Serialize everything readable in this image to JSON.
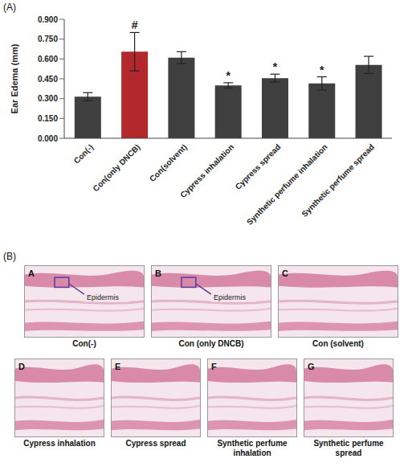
{
  "chart_data": {
    "type": "bar",
    "panel_label": "(A)",
    "y_label": "Ear Edema (mm)",
    "categories": [
      "Con(-)",
      "Con(only DNCB)",
      "Con(solvent)",
      "Cypress inhalation",
      "Cypress spread",
      "Synthetic perfume inhalation",
      "Synthetic perfume spread"
    ],
    "values": [
      0.315,
      0.655,
      0.61,
      0.4,
      0.455,
      0.415,
      0.555
    ],
    "errors": [
      0.03,
      0.145,
      0.045,
      0.02,
      0.03,
      0.05,
      0.065
    ],
    "annotations": [
      null,
      "#",
      null,
      "*",
      "*",
      "*",
      null
    ],
    "colors": [
      "#3f3f3f",
      "#b3282d",
      "#3f3f3f",
      "#3f3f3f",
      "#3f3f3f",
      "#3f3f3f",
      "#3f3f3f"
    ],
    "ylim": [
      0,
      0.9
    ],
    "yticks": [
      {
        "value": 0,
        "label": "0.000"
      },
      {
        "value": 0.15,
        "label": "0.150"
      },
      {
        "value": 0.3,
        "label": "0.300"
      },
      {
        "value": 0.45,
        "label": "0.450"
      },
      {
        "value": 0.6,
        "label": "0.600"
      },
      {
        "value": 0.75,
        "label": "0.750"
      },
      {
        "value": 0.9,
        "label": "0.900"
      }
    ],
    "grid": false
  },
  "figure": {
    "panel_label": "(B)",
    "micrographs": [
      {
        "letter": "A",
        "caption": "Con(-)",
        "annotation": "Epidermis"
      },
      {
        "letter": "B",
        "caption": "Con (only DNCB)",
        "annotation": "Epidermis"
      },
      {
        "letter": "C",
        "caption": "Con (solvent)"
      },
      {
        "letter": "D",
        "caption": "Cypress inhalation"
      },
      {
        "letter": "E",
        "caption": "Cypress spread"
      },
      {
        "letter": "F",
        "caption": "Synthetic perfume inhalation"
      },
      {
        "letter": "G",
        "caption": "Synthetic perfume spread"
      }
    ]
  }
}
